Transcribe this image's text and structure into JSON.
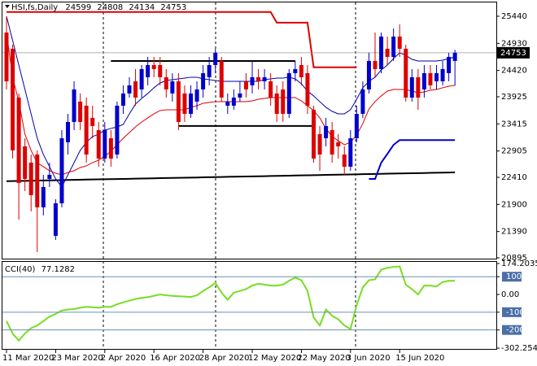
{
  "chart_data": [
    {
      "type": "candlestick",
      "title": "HSI,fs,Daily",
      "categories": [
        "11 Mar 2020",
        null,
        null,
        null,
        null,
        null,
        null,
        null,
        "23 Mar 2020",
        null,
        null,
        null,
        null,
        null,
        null,
        null,
        "2 Apr 2020",
        null,
        null,
        null,
        null,
        null,
        null,
        null,
        "16 Apr 2020",
        null,
        null,
        null,
        null,
        null,
        null,
        null,
        "28 Apr 2020",
        null,
        null,
        null,
        null,
        null,
        null,
        null,
        "12 May 2020",
        null,
        null,
        null,
        null,
        null,
        null,
        null,
        "22 May 2020",
        null,
        null,
        null,
        null,
        null,
        null,
        null,
        "3 Jun 2020",
        null,
        null,
        null,
        null,
        null,
        null,
        null,
        "15 Jun 2020",
        null,
        null,
        null,
        null,
        null,
        null,
        null,
        null,
        null
      ],
      "open": [
        25134,
        24828,
        23910,
        22992,
        22686,
        22839,
        21845,
        22380,
        21309,
        21921,
        23069,
        23451,
        23834,
        23757,
        23528,
        23298,
        22763,
        23145,
        22839,
        23757,
        23987,
        24216,
        24063,
        24293,
        24522,
        24522,
        24293,
        23987,
        24216,
        23987,
        23604,
        23834,
        24063,
        24293,
        24522,
        24599,
        23757,
        23757,
        23910,
        24216,
        24140,
        24293,
        24216,
        24216,
        23987,
        24063,
        23604,
        24369,
        24522,
        24369,
        23681,
        23222,
        23145,
        23298,
        23069,
        22839,
        22610,
        23145,
        23604,
        24063,
        24599,
        24446,
        24828,
        24675,
        25058,
        24828,
        23910,
        24293,
        24063,
        24369,
        24216,
        24216,
        24369,
        24599
      ],
      "high": [
        25440,
        24905,
        23987,
        23145,
        22839,
        22916,
        22457,
        22686,
        21998,
        23298,
        23604,
        24216,
        23987,
        23910,
        23757,
        23451,
        23451,
        23298,
        23834,
        24140,
        24293,
        24446,
        24522,
        24675,
        24675,
        24675,
        24446,
        24369,
        24369,
        24140,
        24140,
        24216,
        24522,
        24675,
        24828,
        24675,
        23987,
        24063,
        24216,
        24369,
        24599,
        24446,
        24446,
        24369,
        24140,
        24216,
        24446,
        24599,
        24675,
        24522,
        23757,
        23375,
        23528,
        23451,
        23222,
        22992,
        23298,
        23757,
        24216,
        24752,
        25134,
        25134,
        25058,
        25211,
        25287,
        24905,
        24446,
        24446,
        24522,
        24522,
        24522,
        24599,
        24752,
        24808
      ],
      "low": [
        24063,
        22763,
        21615,
        22151,
        21768,
        21003,
        21692,
        22227,
        21233,
        21845,
        22839,
        23298,
        23298,
        22686,
        23145,
        22610,
        22686,
        22610,
        22763,
        23604,
        23910,
        23757,
        23910,
        24140,
        24293,
        24140,
        23910,
        23834,
        23298,
        23451,
        23528,
        23681,
        23910,
        24140,
        24369,
        23834,
        23604,
        23681,
        23834,
        23910,
        23987,
        24063,
        24063,
        23757,
        23451,
        23451,
        23528,
        24216,
        24140,
        23604,
        22686,
        22533,
        22992,
        22686,
        22763,
        22457,
        22533,
        23069,
        23528,
        23987,
        24293,
        24369,
        24522,
        24599,
        24675,
        23834,
        23834,
        23681,
        23910,
        24063,
        24063,
        24140,
        24216,
        24134
      ],
      "close": [
        24216,
        22916,
        22304,
        22380,
        22074,
        21845,
        22227,
        22457,
        21921,
        23145,
        23451,
        24063,
        23451,
        22839,
        23375,
        22763,
        23298,
        22763,
        23757,
        23987,
        24140,
        23910,
        24446,
        24522,
        24446,
        24293,
        24063,
        24216,
        23451,
        23604,
        23987,
        24063,
        24369,
        24522,
        24752,
        23910,
        23834,
        23910,
        23987,
        24063,
        24293,
        24216,
        24293,
        23910,
        23604,
        23604,
        24369,
        24446,
        24293,
        23757,
        22763,
        22839,
        23375,
        22839,
        22992,
        22610,
        23145,
        23604,
        24063,
        24599,
        24446,
        25058,
        24675,
        25058,
        24828,
        23910,
        24293,
        23910,
        24369,
        24140,
        24369,
        24446,
        24675,
        24753
      ],
      "up_color": "#0000cc",
      "down_color": "#dd0000",
      "lines": [
        {
          "color": "#000000",
          "width": 2,
          "values": [
            22337,
            22339,
            22342,
            22344,
            22346,
            22348,
            22351,
            22353,
            22355,
            22357,
            22360,
            22362,
            22364,
            22367,
            22369,
            22371,
            22373,
            22376,
            22378,
            22380,
            22382,
            22385,
            22387,
            22389,
            22391,
            22394,
            22396,
            22398,
            22401,
            22403,
            22405,
            22407,
            22410,
            22412,
            22414,
            22416,
            22419,
            22421,
            22423,
            22426,
            22428,
            22430,
            22432,
            22435,
            22437,
            22439,
            22441,
            22444,
            22446,
            22448,
            22450,
            22453,
            22455,
            22457,
            22460,
            22462,
            22464,
            22466,
            22469,
            22471,
            22473,
            22475,
            22478,
            22480,
            22482,
            22485,
            22487,
            22489,
            22491,
            22494,
            22496,
            22498,
            22500,
            22503
          ]
        },
        {
          "color": "#000000",
          "width": 2,
          "values": [
            null,
            null,
            null,
            null,
            null,
            null,
            null,
            null,
            null,
            null,
            null,
            null,
            null,
            null,
            null,
            null,
            null,
            24599,
            24599,
            24599,
            24599,
            24599,
            24599,
            24599,
            24599,
            24599,
            24599,
            24599,
            24599,
            24599,
            24599,
            24599,
            24599,
            24599,
            24599,
            24599,
            24599,
            24599,
            24599,
            24599,
            24599,
            24599,
            24599,
            24599,
            24599,
            24599,
            24599,
            24599,
            null,
            null,
            null,
            null,
            null,
            null,
            null,
            null,
            null,
            null,
            null,
            null,
            null,
            null,
            null,
            null,
            null,
            null,
            null,
            null,
            null,
            null,
            null,
            null,
            null,
            null
          ]
        },
        {
          "color": "#000000",
          "width": 2,
          "values": [
            null,
            null,
            null,
            null,
            null,
            null,
            null,
            null,
            null,
            null,
            null,
            null,
            null,
            null,
            null,
            null,
            null,
            null,
            null,
            null,
            null,
            null,
            null,
            null,
            null,
            null,
            null,
            null,
            23375,
            23375,
            23375,
            23375,
            23375,
            23375,
            23375,
            23375,
            23375,
            23375,
            23375,
            23375,
            23375,
            23375,
            23375,
            23375,
            23375,
            23375,
            23375,
            23375,
            23375,
            23375,
            23375,
            null,
            null,
            null,
            null,
            null,
            null,
            null,
            null,
            null,
            null,
            null,
            null,
            null,
            null,
            null,
            null,
            null,
            null,
            null,
            null,
            null,
            null,
            null
          ]
        },
        {
          "color": "#dd0000",
          "width": 2,
          "values": [
            25520,
            25520,
            25520,
            25520,
            25520,
            25520,
            25520,
            25520,
            25520,
            25520,
            25520,
            25520,
            25520,
            25520,
            25520,
            25520,
            25520,
            25520,
            25520,
            25520,
            25520,
            25520,
            25520,
            25520,
            25520,
            25520,
            25520,
            25520,
            25520,
            25520,
            25520,
            25520,
            25520,
            25520,
            25520,
            25520,
            25520,
            25520,
            25520,
            25520,
            25520,
            25520,
            25520,
            25520,
            25320,
            25320,
            25320,
            25320,
            25320,
            25320,
            24480,
            24480,
            24480,
            24480,
            24480,
            24480,
            24480,
            24480,
            null,
            null,
            null,
            null,
            null,
            null,
            null,
            null,
            null,
            null,
            null,
            null,
            null,
            null,
            null,
            null
          ]
        },
        {
          "color": "#0000cc",
          "width": 2,
          "values": [
            null,
            null,
            null,
            null,
            null,
            null,
            null,
            null,
            null,
            null,
            null,
            null,
            null,
            null,
            null,
            null,
            null,
            null,
            null,
            null,
            null,
            null,
            null,
            null,
            null,
            null,
            null,
            null,
            null,
            null,
            null,
            null,
            null,
            null,
            null,
            null,
            null,
            null,
            null,
            null,
            null,
            null,
            null,
            null,
            null,
            null,
            null,
            null,
            null,
            null,
            null,
            null,
            null,
            null,
            null,
            null,
            null,
            null,
            null,
            22380,
            22380,
            22686,
            22850,
            23020,
            23110,
            23110,
            23110,
            23110,
            23110,
            23110,
            23110,
            23110,
            23110,
            23110
          ]
        },
        {
          "color": "#0000aa",
          "width": 1,
          "values": [
            25440,
            24981,
            24522,
            24063,
            23604,
            23145,
            22839,
            22610,
            22380,
            22227,
            22457,
            22686,
            22916,
            23069,
            23176,
            23222,
            23298,
            23329,
            23359,
            23405,
            23604,
            23788,
            23895,
            23987,
            24094,
            24185,
            24231,
            24247,
            24262,
            24277,
            24293,
            24293,
            24262,
            24247,
            24231,
            24216,
            24216,
            24216,
            24216,
            24216,
            24216,
            24216,
            24247,
            24262,
            24277,
            24277,
            24293,
            24262,
            24170,
            24032,
            23941,
            23834,
            23727,
            23651,
            23604,
            23604,
            23681,
            23879,
            24094,
            24216,
            24293,
            24430,
            24522,
            24644,
            24752,
            24706,
            24629,
            24599,
            24599,
            24599,
            24599,
            24614,
            24644,
            24675
          ]
        },
        {
          "color": "#dd0000",
          "width": 1,
          "values": [
            25134,
            24293,
            23834,
            23222,
            22916,
            22686,
            22610,
            22533,
            22487,
            22457,
            22502,
            22533,
            22594,
            22625,
            22686,
            22732,
            22808,
            22900,
            23023,
            23145,
            23252,
            23359,
            23451,
            23528,
            23604,
            23665,
            23681,
            23681,
            23681,
            23681,
            23727,
            23757,
            23803,
            23819,
            23834,
            23834,
            23834,
            23834,
            23834,
            23834,
            23849,
            23879,
            23895,
            23910,
            23910,
            23910,
            23910,
            23910,
            23849,
            23757,
            23665,
            23528,
            23329,
            23176,
            23099,
            23023,
            23069,
            23206,
            23421,
            23696,
            23834,
            23941,
            24032,
            24063,
            24063,
            24063,
            24032,
            24002,
            24017,
            24048,
            24063,
            24094,
            24124,
            24140
          ]
        }
      ],
      "ylim": [
        20880,
        25715
      ],
      "yticks": [
        25440,
        24930,
        24420,
        23925,
        23415,
        22905,
        22410,
        21900,
        21390,
        20895
      ]
    },
    {
      "type": "line",
      "title": "CCI(40)",
      "color": "#77dd22",
      "values": [
        -150,
        -220,
        -260,
        -220,
        -190,
        -175,
        -150,
        -125,
        -110,
        -90,
        -85,
        -82,
        -75,
        -70,
        -72,
        -75,
        -70,
        -70,
        -55,
        -45,
        -35,
        -25,
        -20,
        -15,
        -8,
        0,
        -5,
        -8,
        -10,
        -12,
        -14,
        -5,
        20,
        40,
        65,
        10,
        -30,
        10,
        20,
        30,
        50,
        60,
        55,
        50,
        50,
        55,
        77,
        95,
        80,
        20,
        -130,
        -175,
        -85,
        -120,
        -140,
        -175,
        -195,
        -60,
        40,
        80,
        85,
        140,
        150,
        155,
        158,
        55,
        30,
        0,
        50,
        50,
        45,
        70,
        77,
        77.1282
      ],
      "ylim": [
        -302.254,
        174.2035
      ],
      "yticks": [
        174.2035,
        100,
        {
          "value": 0,
          "label": "0.00"
        },
        -100,
        -200,
        -302.254
      ]
    }
  ]
}
